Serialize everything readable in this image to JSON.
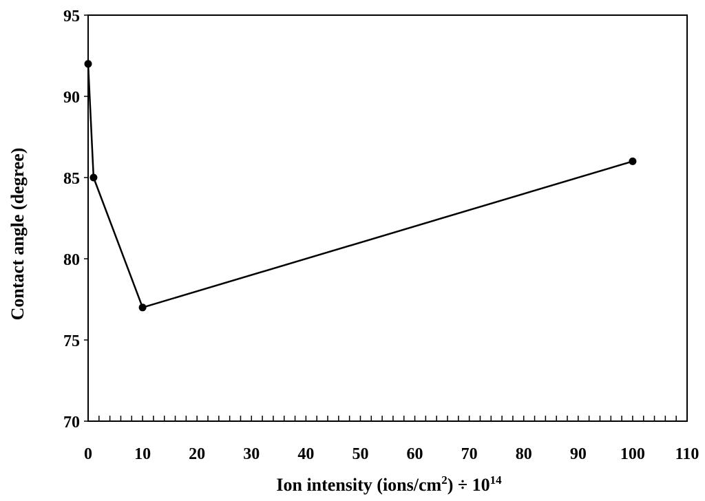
{
  "chart_data": {
    "type": "line",
    "title": "",
    "xlabel": {
      "prefix": "Ion intensity (ions/cm",
      "sup": "2",
      "middle": ") ÷ 10",
      "exp": "14"
    },
    "ylabel": "Contact angle (degree)",
    "xlim": [
      0,
      110
    ],
    "ylim": [
      70,
      95
    ],
    "xticks": [
      0,
      10,
      20,
      30,
      40,
      50,
      60,
      70,
      80,
      90,
      100,
      110
    ],
    "yticks": [
      70,
      75,
      80,
      85,
      90,
      95
    ],
    "x_minor_step": 2,
    "grid": false,
    "legend": "none",
    "series": [
      {
        "x": [
          0,
          1,
          10,
          100
        ],
        "y": [
          92,
          85,
          77,
          86
        ],
        "color": "#000000",
        "marker": "circle"
      }
    ]
  }
}
